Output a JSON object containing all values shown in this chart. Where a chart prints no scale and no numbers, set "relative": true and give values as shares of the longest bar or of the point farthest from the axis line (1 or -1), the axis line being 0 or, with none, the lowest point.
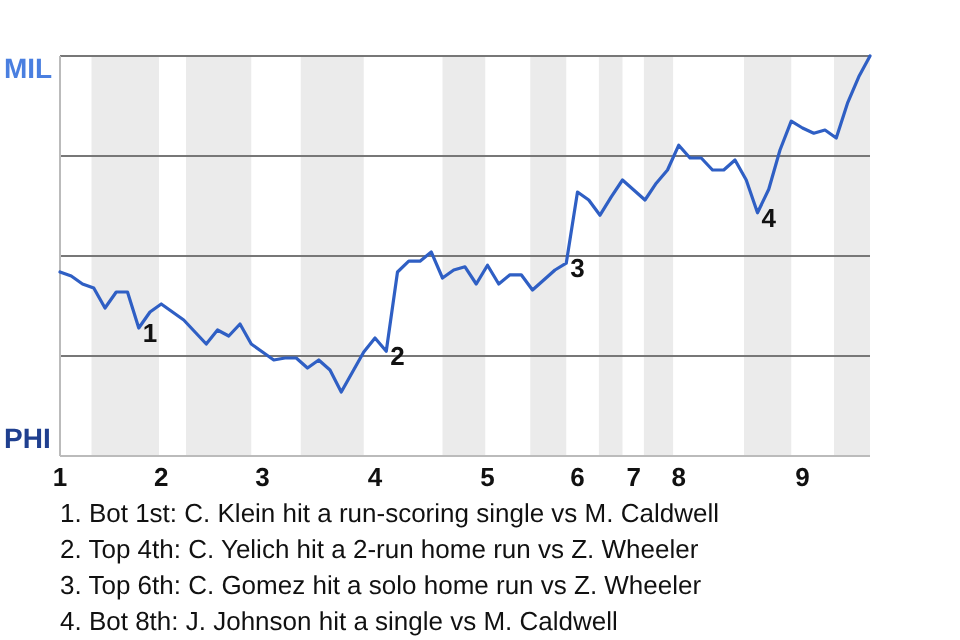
{
  "chart_data": {
    "type": "line",
    "relative": true,
    "categories": [
      "1",
      null,
      null,
      null,
      null,
      null,
      null,
      null,
      null,
      "2",
      null,
      null,
      null,
      null,
      null,
      null,
      null,
      null,
      "3",
      null,
      null,
      null,
      null,
      null,
      null,
      null,
      null,
      null,
      "4",
      null,
      null,
      null,
      null,
      null,
      null,
      null,
      null,
      null,
      "5",
      null,
      null,
      null,
      null,
      null,
      null,
      null,
      "6",
      null,
      null,
      null,
      null,
      "7",
      null,
      null,
      null,
      "8",
      null,
      null,
      null,
      null,
      null,
      null,
      null,
      null,
      null,
      null,
      "9",
      null,
      null,
      null,
      null,
      null,
      null
    ],
    "series": [
      {
        "color": "#2f5fc4",
        "values": [
          0.46,
          0.45,
          0.43,
          0.42,
          0.37,
          0.41,
          0.41,
          0.32,
          0.36,
          0.38,
          0.36,
          0.34,
          0.31,
          0.28,
          0.315,
          0.3,
          0.33,
          0.28,
          0.26,
          0.24,
          0.245,
          0.245,
          0.22,
          0.24,
          0.215,
          0.16,
          0.21,
          0.26,
          0.295,
          0.262,
          0.46,
          0.487,
          0.487,
          0.51,
          0.445,
          0.465,
          0.473,
          0.43,
          0.477,
          0.43,
          0.453,
          0.453,
          0.415,
          0.44,
          0.465,
          0.482,
          0.66,
          0.64,
          0.602,
          0.648,
          0.69,
          0.665,
          0.64,
          0.682,
          0.715,
          0.777,
          0.745,
          0.745,
          0.715,
          0.715,
          0.74,
          0.69,
          0.608,
          0.667,
          0.765,
          0.837,
          0.82,
          0.807,
          0.815,
          0.795,
          0.882,
          0.948,
          1
        ]
      }
    ],
    "grid": "y",
    "marker": "none",
    "line_style": "solid",
    "annotations": [
      "MIL",
      "PHI",
      {
        "text": "1",
        "y": 0.32
      },
      {
        "text": "2",
        "y": 0.262
      },
      {
        "text": "3",
        "y": 0.482
      },
      {
        "text": "4",
        "y": 0.608
      },
      "1. Bot 1st: C. Klein hit a run-scoring single vs M. Caldwell",
      "2. Top 4th: C. Yelich hit a 2-run home run vs Z. Wheeler",
      "3. Top 6th: C. Gomez hit a solo home run vs Z. Wheeler",
      "4. Bot 8th: J. Johnson hit a single vs M. Caldwell"
    ]
  }
}
